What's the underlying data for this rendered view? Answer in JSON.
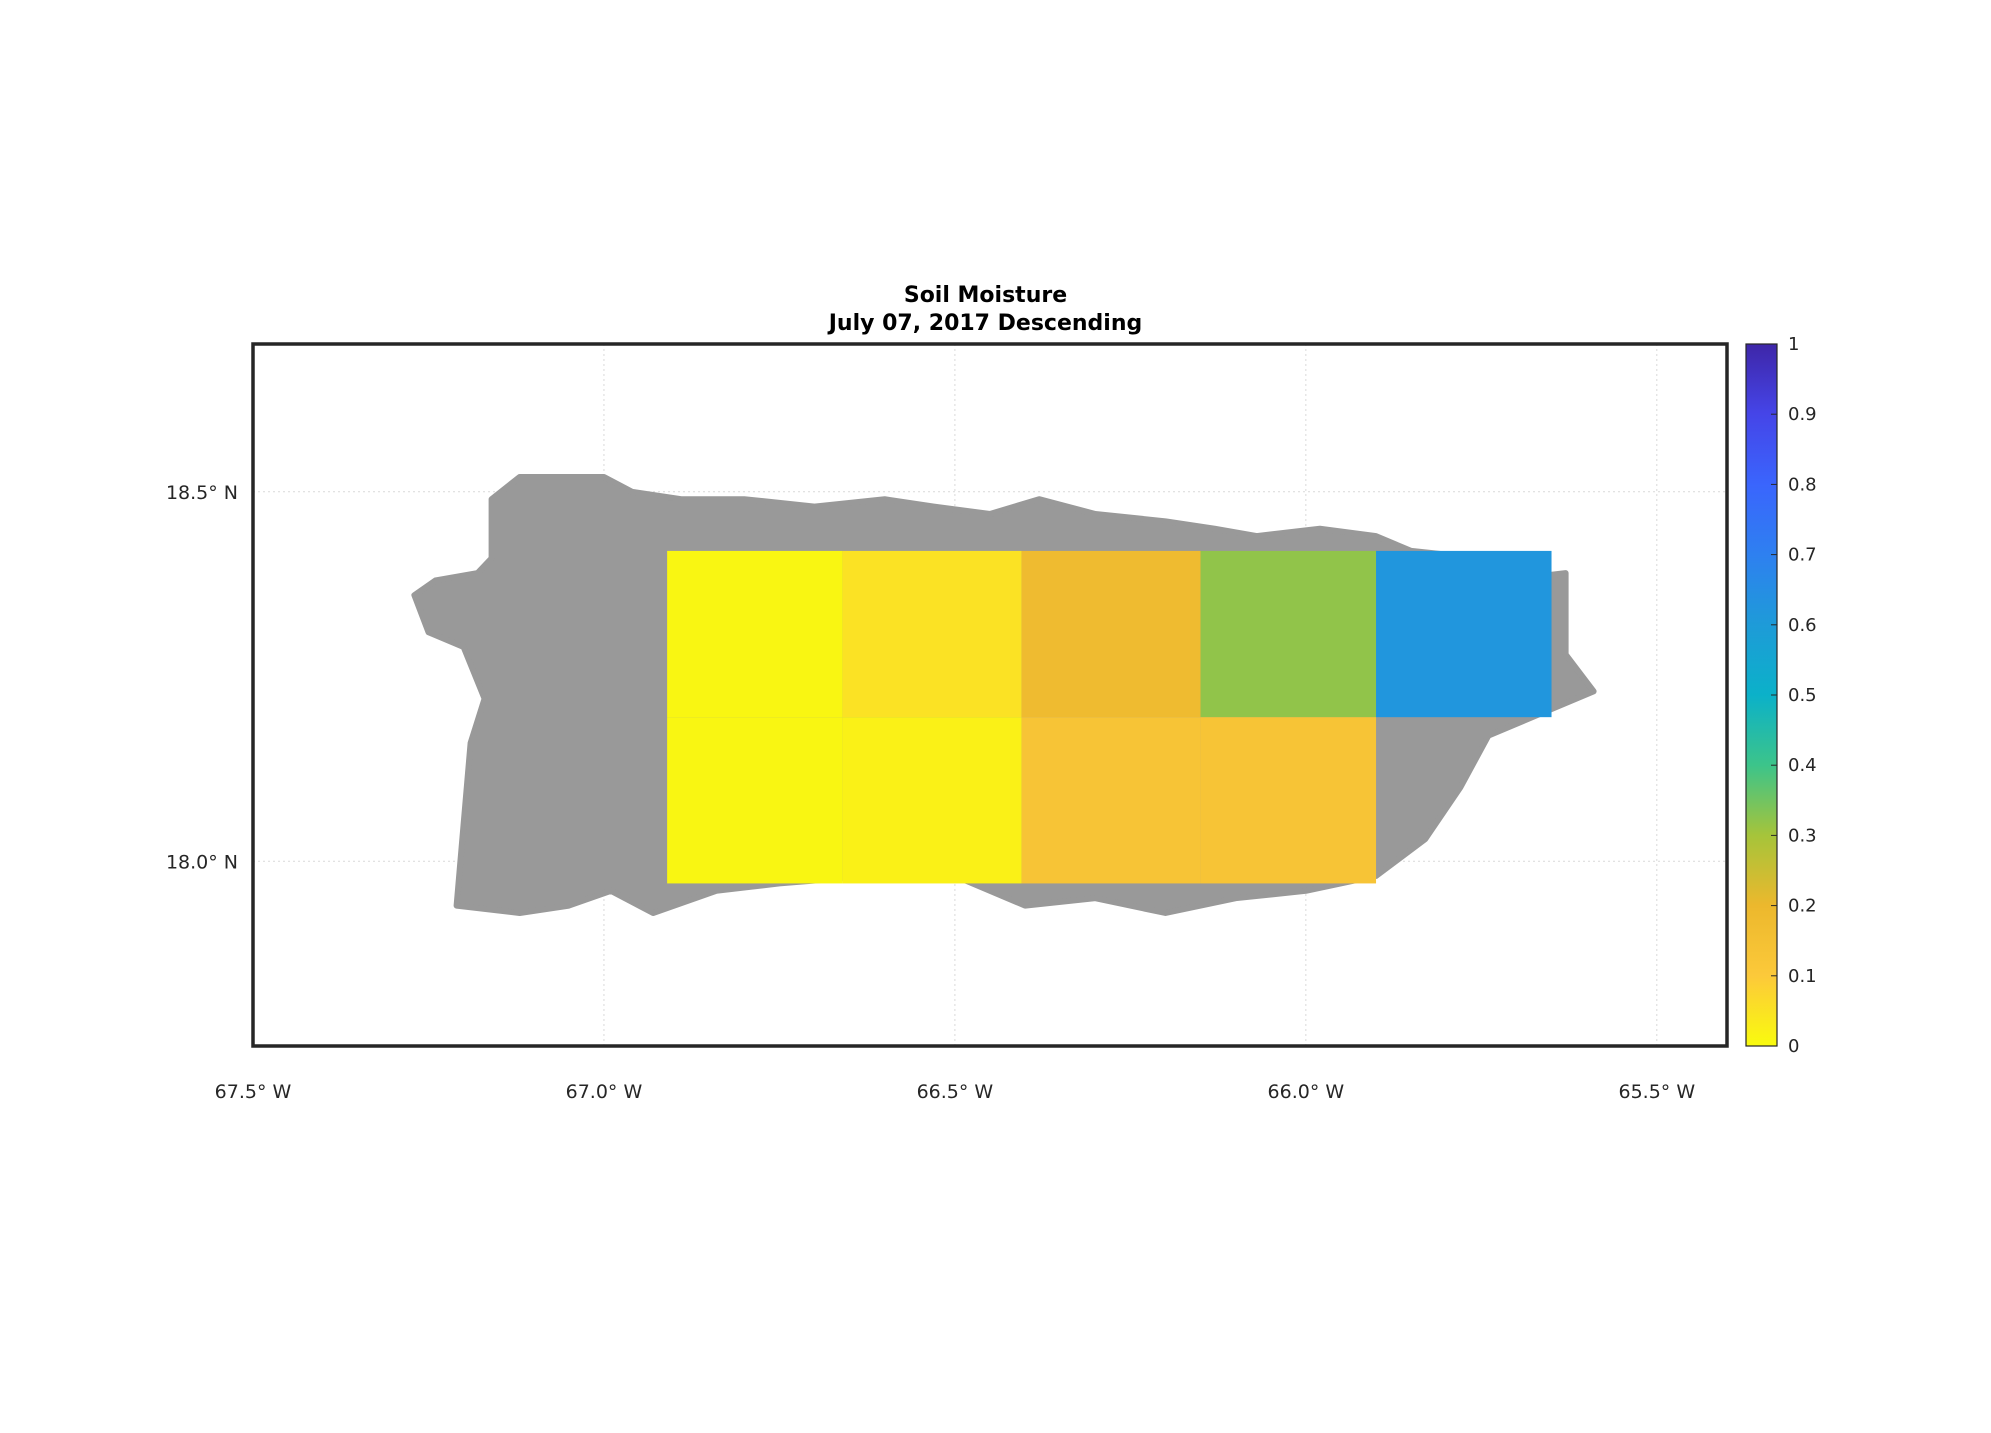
{
  "title": "Soil Moisture",
  "subtitle": "July 07, 2017 Descending",
  "chart_data": {
    "type": "heatmap",
    "title": "Soil Moisture",
    "subtitle": "July 07, 2017 Descending",
    "xlim": [
      -67.5,
      -65.4
    ],
    "ylim": [
      17.75,
      18.7
    ],
    "x_ticks": [
      {
        "value": -67.5,
        "label": "67.5° W"
      },
      {
        "value": -67.0,
        "label": "67.0° W"
      },
      {
        "value": -66.5,
        "label": "66.5° W"
      },
      {
        "value": -66.0,
        "label": "66.0° W"
      },
      {
        "value": -65.5,
        "label": "65.5° W"
      }
    ],
    "y_ticks": [
      {
        "value": 18.5,
        "label": "18.5° N"
      },
      {
        "value": 18.0,
        "label": "18.0° N"
      }
    ],
    "grid": true,
    "land_color": "#999999",
    "cells": [
      {
        "lon_min": -66.91,
        "lon_max": -66.66,
        "lat_min": 18.195,
        "lat_max": 18.42,
        "value": 0.01
      },
      {
        "lon_min": -66.66,
        "lon_max": -66.405,
        "lat_min": 18.195,
        "lat_max": 18.42,
        "value": 0.05
      },
      {
        "lon_min": -66.405,
        "lon_max": -66.15,
        "lat_min": 18.195,
        "lat_max": 18.42,
        "value": 0.18
      },
      {
        "lon_min": -66.15,
        "lon_max": -65.9,
        "lat_min": 18.195,
        "lat_max": 18.42,
        "value": 0.32
      },
      {
        "lon_min": -65.9,
        "lon_max": -65.65,
        "lat_min": 18.195,
        "lat_max": 18.42,
        "value": 0.62
      },
      {
        "lon_min": -66.91,
        "lon_max": -66.66,
        "lat_min": 17.97,
        "lat_max": 18.195,
        "value": 0.01
      },
      {
        "lon_min": -66.66,
        "lon_max": -66.405,
        "lat_min": 17.97,
        "lat_max": 18.195,
        "value": 0.02
      },
      {
        "lon_min": -66.405,
        "lon_max": -66.15,
        "lat_min": 17.97,
        "lat_max": 18.195,
        "value": 0.13
      },
      {
        "lon_min": -66.15,
        "lon_max": -65.9,
        "lat_min": 17.97,
        "lat_max": 18.195,
        "value": 0.13
      }
    ],
    "colorbar": {
      "range": [
        0,
        1
      ],
      "ticks": [
        {
          "value": 0,
          "label": "0"
        },
        {
          "value": 0.1,
          "label": "0.1"
        },
        {
          "value": 0.2,
          "label": "0.2"
        },
        {
          "value": 0.3,
          "label": "0.3"
        },
        {
          "value": 0.4,
          "label": "0.4"
        },
        {
          "value": 0.5,
          "label": "0.5"
        },
        {
          "value": 0.6,
          "label": "0.6"
        },
        {
          "value": 0.7,
          "label": "0.7"
        },
        {
          "value": 0.8,
          "label": "0.8"
        },
        {
          "value": 0.9,
          "label": "0.9"
        },
        {
          "value": 1,
          "label": "1"
        }
      ],
      "colors": [
        "#f9fb0e",
        "#fcc93a",
        "#ecb82d",
        "#a6c43a",
        "#3cc48a",
        "#0bb1c9",
        "#1e9bd8",
        "#2e80f0",
        "#3a65fd",
        "#4545e8",
        "#3e26a8"
      ]
    }
  }
}
